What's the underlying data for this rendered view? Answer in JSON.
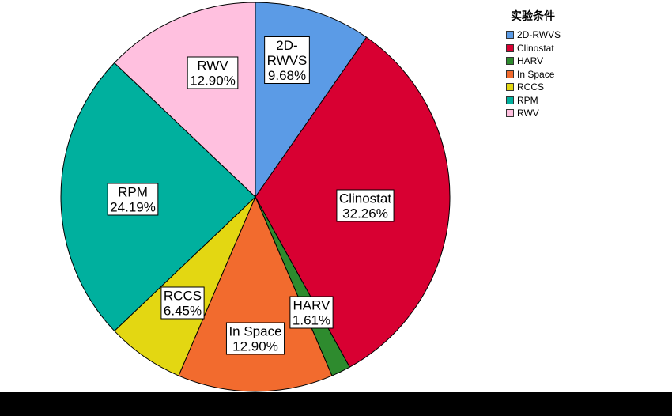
{
  "chart_data": {
    "type": "pie",
    "legend_title": "实验条件",
    "legend_position": "top-right",
    "slices": [
      {
        "name": "2D-RWVS",
        "label_lines": [
          "2D-",
          "RWVS"
        ],
        "pct_text": "9.68%",
        "value": 9.68,
        "color": "#5B9BE6"
      },
      {
        "name": "Clinostat",
        "label_lines": [
          "Clinostat"
        ],
        "pct_text": "32.26%",
        "value": 32.26,
        "color": "#D80032"
      },
      {
        "name": "HARV",
        "label_lines": [
          "HARV"
        ],
        "pct_text": "1.61%",
        "value": 1.61,
        "color": "#2E8B2E"
      },
      {
        "name": "In Space",
        "label_lines": [
          "In Space"
        ],
        "pct_text": "12.90%",
        "value": 12.9,
        "color": "#F26B2E"
      },
      {
        "name": "RCCS",
        "label_lines": [
          "RCCS"
        ],
        "pct_text": "6.45%",
        "value": 6.45,
        "color": "#E3D712"
      },
      {
        "name": "RPM",
        "label_lines": [
          "RPM"
        ],
        "pct_text": "24.19%",
        "value": 24.19,
        "color": "#00B09E"
      },
      {
        "name": "RWV",
        "label_lines": [
          "RWV"
        ],
        "pct_text": "12.90%",
        "value": 12.9,
        "color": "#FFC0DF"
      }
    ]
  }
}
